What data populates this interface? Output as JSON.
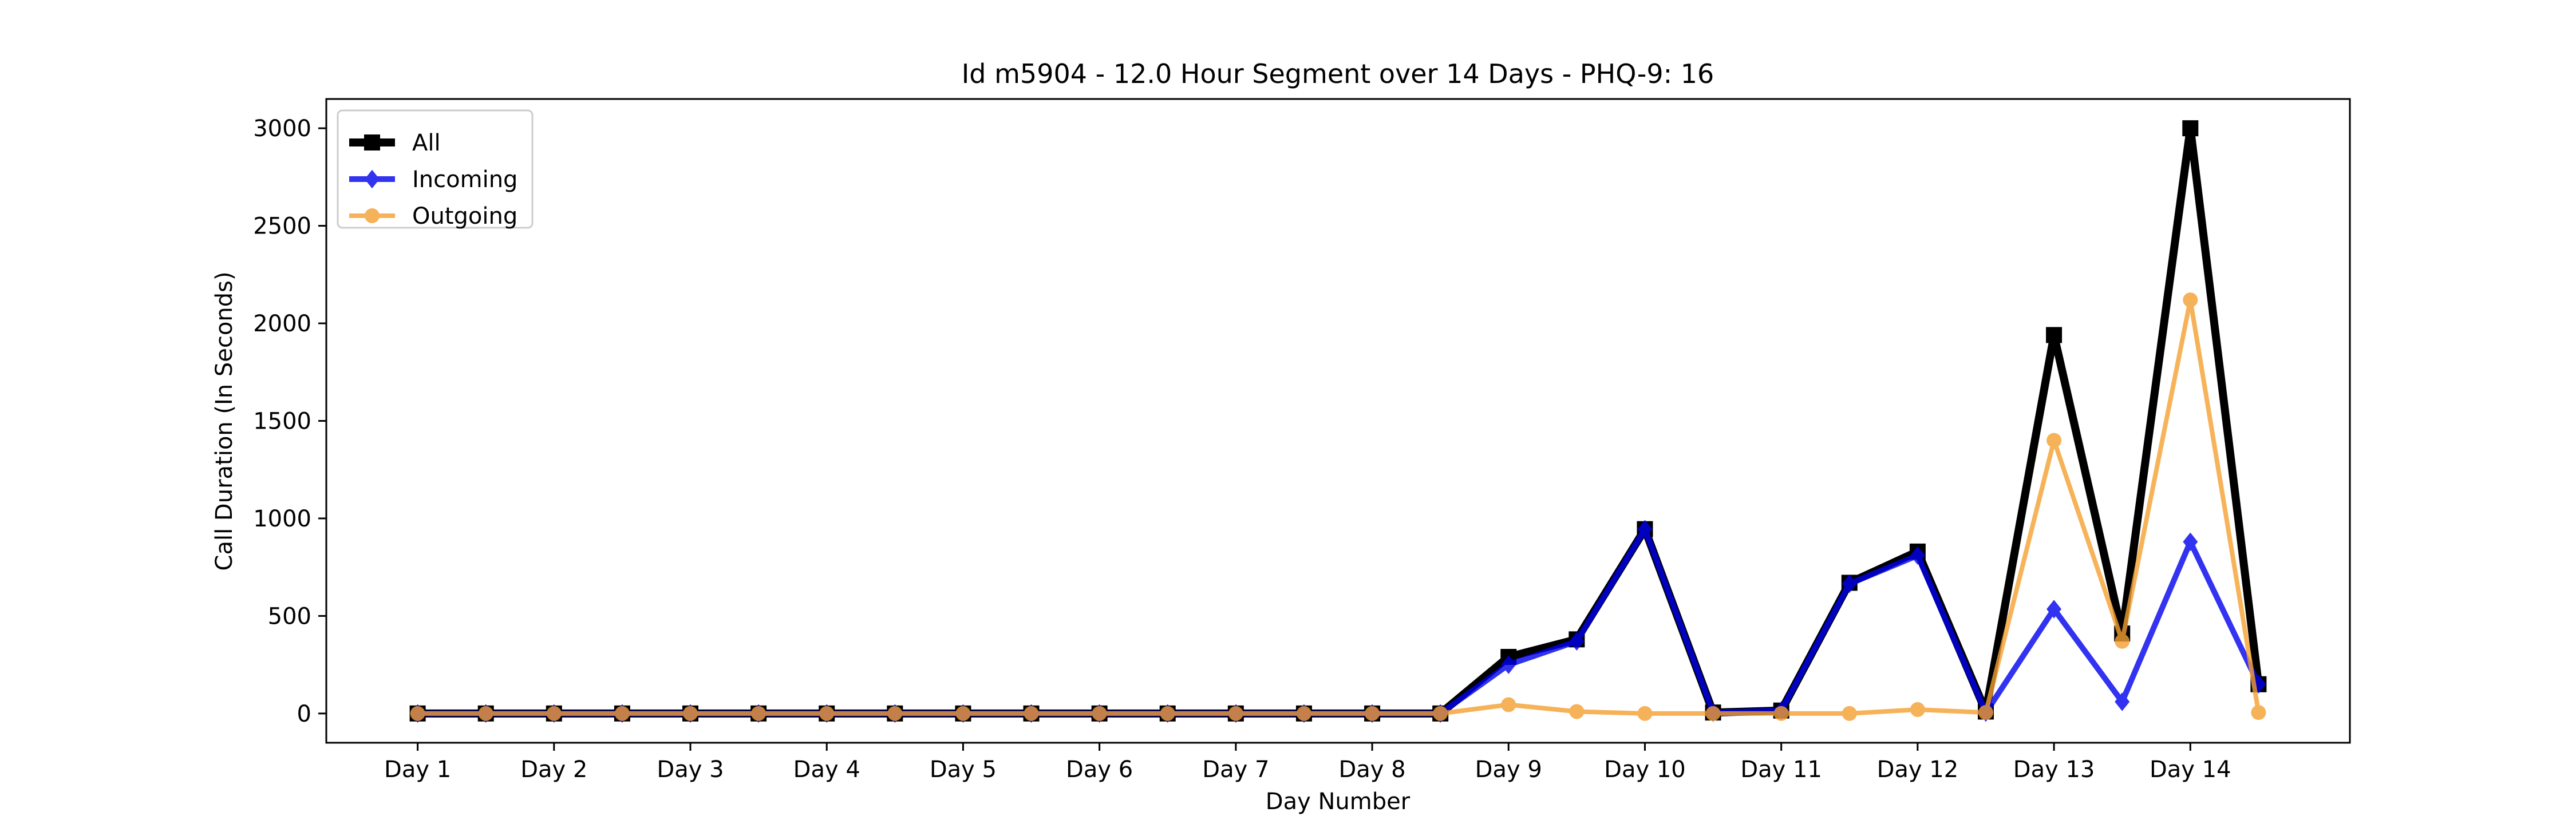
{
  "chart_data": {
    "type": "line",
    "title": "Id m5904 - 12.0 Hour Segment over 14 Days - PHQ-9: 16",
    "xlabel": "Day Number",
    "ylabel": "Call Duration (In Seconds)",
    "ylim": [
      -150,
      3150
    ],
    "yticks": [
      0,
      500,
      1000,
      1500,
      2000,
      2500,
      3000
    ],
    "xticks": [
      "Day 1",
      "Day 2",
      "Day 3",
      "Day 4",
      "Day 5",
      "Day 6",
      "Day 7",
      "Day 8",
      "Day 9",
      "Day 10",
      "Day 11",
      "Day 12",
      "Day 13",
      "Day 14"
    ],
    "x": [
      1,
      1.5,
      2,
      2.5,
      3,
      3.5,
      4,
      4.5,
      5,
      5.5,
      6,
      6.5,
      7,
      7.5,
      8,
      8.5,
      9,
      9.5,
      10,
      10.5,
      11,
      11.5,
      12,
      12.5,
      13,
      13.5,
      14,
      14.5
    ],
    "xlim": [
      0.33,
      15.17
    ],
    "grid": false,
    "legend_position": "top-left",
    "series": [
      {
        "name": "All",
        "color": "#000000",
        "marker": "square",
        "values": [
          0,
          0,
          0,
          0,
          0,
          0,
          0,
          0,
          0,
          0,
          0,
          0,
          0,
          0,
          0,
          0,
          290,
          380,
          945,
          5,
          15,
          670,
          830,
          10,
          1940,
          410,
          3000,
          150
        ]
      },
      {
        "name": "Incoming",
        "color": "#0000ee",
        "marker": "diamond",
        "values": [
          0,
          0,
          0,
          0,
          0,
          0,
          0,
          0,
          0,
          0,
          0,
          0,
          0,
          0,
          0,
          0,
          250,
          370,
          945,
          5,
          15,
          665,
          810,
          5,
          535,
          60,
          880,
          150
        ]
      },
      {
        "name": "Outgoing",
        "color": "#f5a030",
        "marker": "circle",
        "values": [
          0,
          0,
          0,
          0,
          0,
          0,
          0,
          0,
          0,
          0,
          0,
          0,
          0,
          0,
          0,
          0,
          45,
          10,
          0,
          0,
          0,
          0,
          20,
          5,
          1400,
          370,
          2120,
          5
        ]
      }
    ]
  }
}
